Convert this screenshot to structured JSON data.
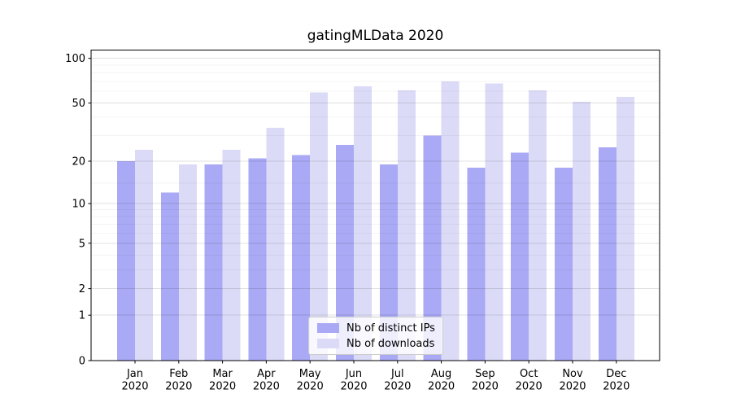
{
  "chart_data": {
    "type": "bar",
    "title": "gatingMLData 2020",
    "categories": [
      "Jan",
      "Feb",
      "Mar",
      "Apr",
      "May",
      "Jun",
      "Jul",
      "Aug",
      "Sep",
      "Oct",
      "Nov",
      "Dec"
    ],
    "category_year": "2020",
    "series": [
      {
        "name": "Nb of distinct IPs",
        "color": "#a9a9f5",
        "values": [
          20,
          12,
          19,
          21,
          22,
          26,
          19,
          30,
          18,
          23,
          18,
          25
        ]
      },
      {
        "name": "Nb of downloads",
        "color": "#dbdbf7",
        "values": [
          24,
          19,
          24,
          34,
          59,
          65,
          61,
          70,
          68,
          61,
          51,
          55
        ]
      }
    ],
    "yscale": "symlog",
    "ylim": [
      0,
      113.6
    ],
    "y_ticks": [
      0,
      1,
      2,
      5,
      10,
      20,
      50,
      100
    ],
    "y_minor_ticks": [
      3,
      4,
      6,
      7,
      8,
      9,
      14,
      30,
      40,
      60,
      70,
      80,
      90
    ],
    "xlabel": "",
    "ylabel": "",
    "grid": true,
    "legend_position": "lower center"
  }
}
